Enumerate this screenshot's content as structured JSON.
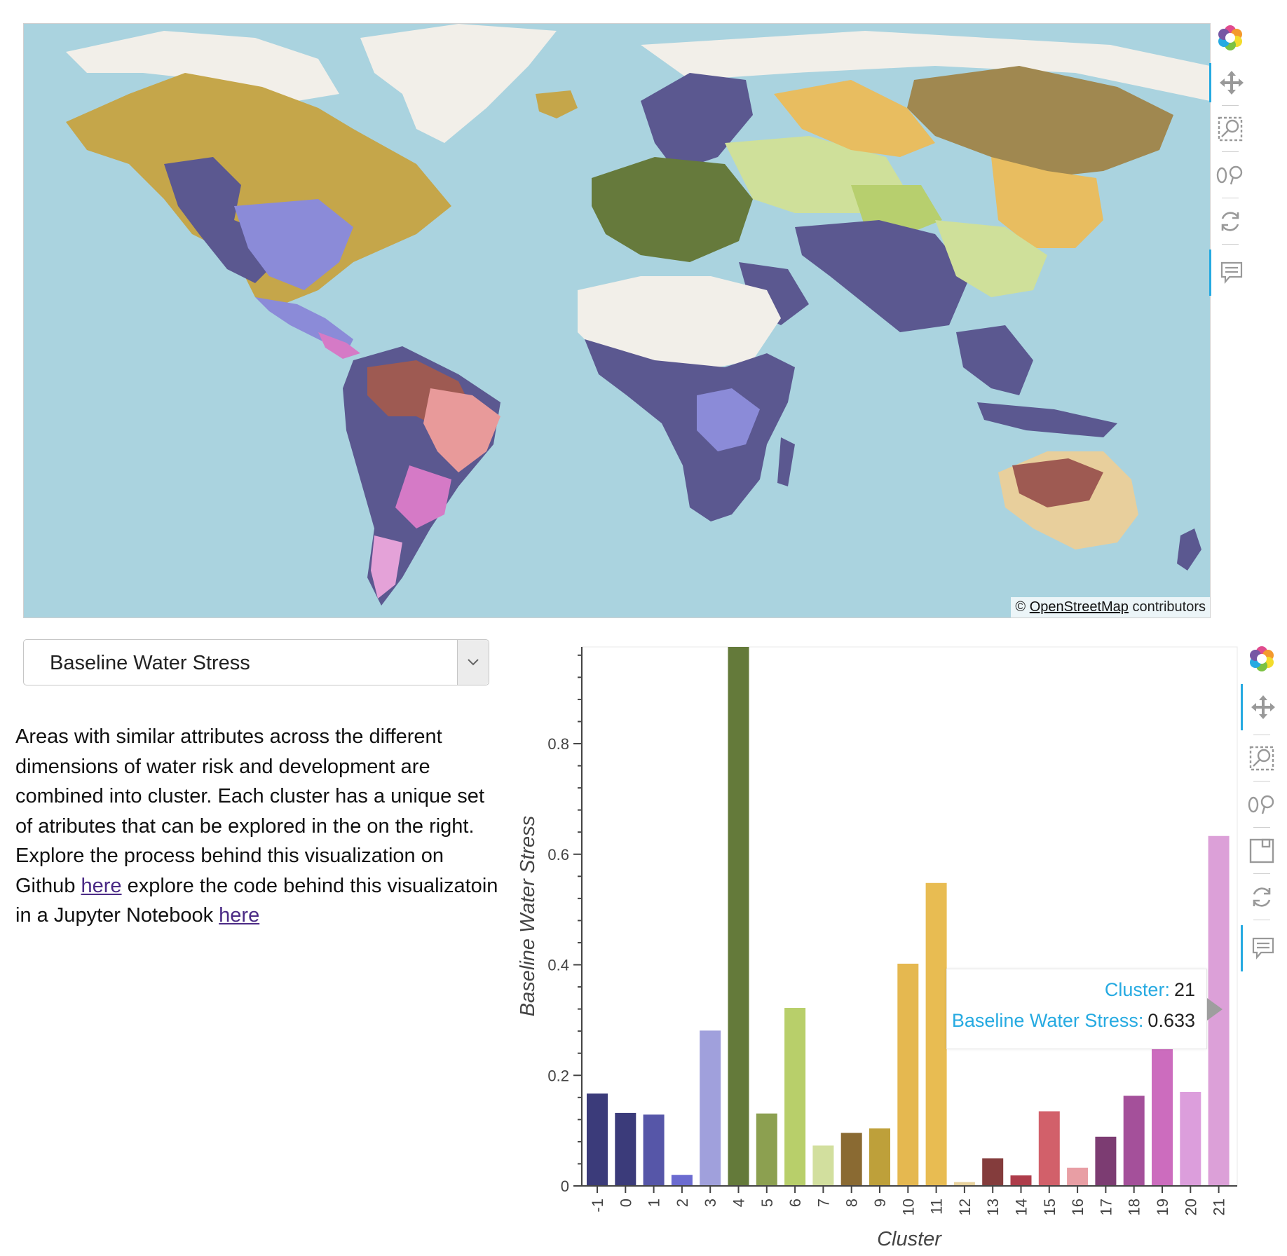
{
  "map": {
    "attribution_symbol": "©",
    "attribution_link": "OpenStreetMap",
    "attribution_suffix": "contributors",
    "colors": {
      "ocean": "#aad3df",
      "land": "#f2efe9",
      "cluster_minus1": "#5b5890",
      "cluster_3": "#8b8bd8",
      "cluster_4": "#667a3c",
      "cluster_6": "#b7cf6e",
      "cluster_7": "#cfe09a",
      "cluster_8": "#a08850",
      "cluster_9": "#c5a64a",
      "cluster_11": "#e8bd60",
      "cluster_12": "#e8cf9c",
      "cluster_13": "#9e5a52",
      "cluster_15": "#c9676a",
      "cluster_16": "#e89a9a",
      "cluster_18": "#b66aa6",
      "cluster_19": "#d57ac6",
      "cluster_21": "#e4a2d8"
    }
  },
  "map_toolbar": {
    "tools": [
      "bokeh-logo-icon",
      "pan-icon",
      "box-zoom-icon",
      "wheel-zoom-icon",
      "reset-icon",
      "hover-icon"
    ]
  },
  "chart_toolbar": {
    "tools": [
      "bokeh-logo-icon",
      "pan-icon",
      "box-zoom-icon",
      "wheel-zoom-icon",
      "save-icon",
      "reset-icon",
      "hover-icon"
    ]
  },
  "controls": {
    "select_value": "Baseline Water Stress"
  },
  "description": {
    "text_1": "Areas with similar attributes across the different dimensions of water risk and development are combined into cluster. Each cluster has a unique set of atributes that can be explored in the on the right. Explore the process behind this visualization on Github ",
    "link_1": "here",
    "text_2": " explore the code behind this visualizatoin in a Jupyter Notebook ",
    "link_2": "here"
  },
  "tooltip": {
    "cluster_label": "Cluster:",
    "cluster_value": "21",
    "metric_label": "Baseline Water Stress:",
    "metric_value": "0.633"
  },
  "chart_data": {
    "type": "bar",
    "xlabel": "Cluster",
    "ylabel": "Baseline Water Stress",
    "ylim": [
      0,
      0.975
    ],
    "yticks": [
      0,
      0.2,
      0.4,
      0.6,
      0.8
    ],
    "ytick_labels": [
      "0",
      "0.2",
      "0.4",
      "0.6",
      "0.8"
    ],
    "grid": false,
    "categories": [
      "-1",
      "0",
      "1",
      "2",
      "3",
      "4",
      "5",
      "6",
      "7",
      "8",
      "9",
      "10",
      "11",
      "12",
      "13",
      "14",
      "15",
      "16",
      "17",
      "18",
      "19",
      "20",
      "21"
    ],
    "values": [
      0.167,
      0.132,
      0.129,
      0.02,
      0.281,
      0.975,
      0.131,
      0.322,
      0.073,
      0.096,
      0.104,
      0.402,
      0.548,
      0.007,
      0.05,
      0.019,
      0.135,
      0.033,
      0.089,
      0.163,
      0.265,
      0.17,
      0.633
    ],
    "colors": [
      "#3b3b7a",
      "#3b3b7a",
      "#5656a8",
      "#6b6bd0",
      "#a0a0dc",
      "#647a3a",
      "#8ca050",
      "#b8cf6a",
      "#d2df9e",
      "#8a6a32",
      "#bea03a",
      "#e5b850",
      "#e8bc52",
      "#e8d29c",
      "#843c3c",
      "#ae3c4a",
      "#d2606a",
      "#e89ea4",
      "#7c3c72",
      "#a4509a",
      "#cc6cbe",
      "#dc9edc",
      "#dca0d8"
    ]
  }
}
